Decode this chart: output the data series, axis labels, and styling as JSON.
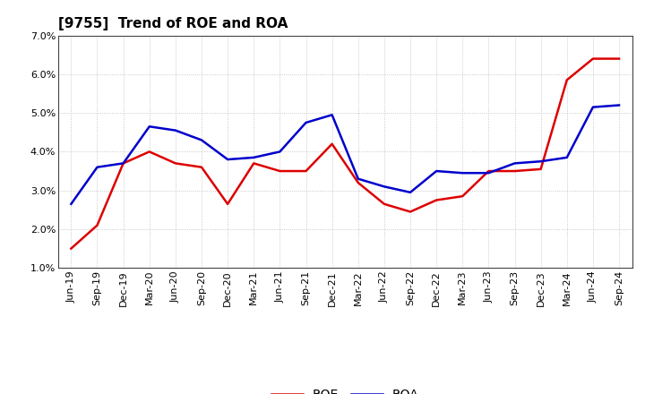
{
  "title": "[9755]  Trend of ROE and ROA",
  "x_labels": [
    "Jun-19",
    "Sep-19",
    "Dec-19",
    "Mar-20",
    "Jun-20",
    "Sep-20",
    "Dec-20",
    "Mar-21",
    "Jun-21",
    "Sep-21",
    "Dec-21",
    "Mar-22",
    "Jun-22",
    "Sep-22",
    "Dec-22",
    "Mar-23",
    "Jun-23",
    "Sep-23",
    "Dec-23",
    "Mar-24",
    "Jun-24",
    "Sep-24"
  ],
  "roe": [
    1.5,
    2.1,
    3.7,
    4.0,
    3.7,
    3.6,
    2.65,
    3.7,
    3.5,
    3.5,
    4.2,
    3.2,
    2.65,
    2.45,
    2.75,
    2.85,
    3.5,
    3.5,
    3.55,
    5.85,
    6.4,
    6.4
  ],
  "roa": [
    2.65,
    3.6,
    3.7,
    4.65,
    4.55,
    4.3,
    3.8,
    3.85,
    4.0,
    4.75,
    4.95,
    3.3,
    3.1,
    2.95,
    3.5,
    3.45,
    3.45,
    3.7,
    3.75,
    3.85,
    5.15,
    5.2
  ],
  "roe_color": "#dd0000",
  "roa_color": "#0000cc",
  "ylim": [
    1.0,
    7.0
  ],
  "yticks": [
    1.0,
    2.0,
    3.0,
    4.0,
    5.0,
    6.0,
    7.0
  ],
  "background_color": "#ffffff",
  "grid_color": "#aaaaaa",
  "title_fontsize": 11,
  "tick_fontsize": 8,
  "legend_labels": [
    "ROE",
    "ROA"
  ]
}
